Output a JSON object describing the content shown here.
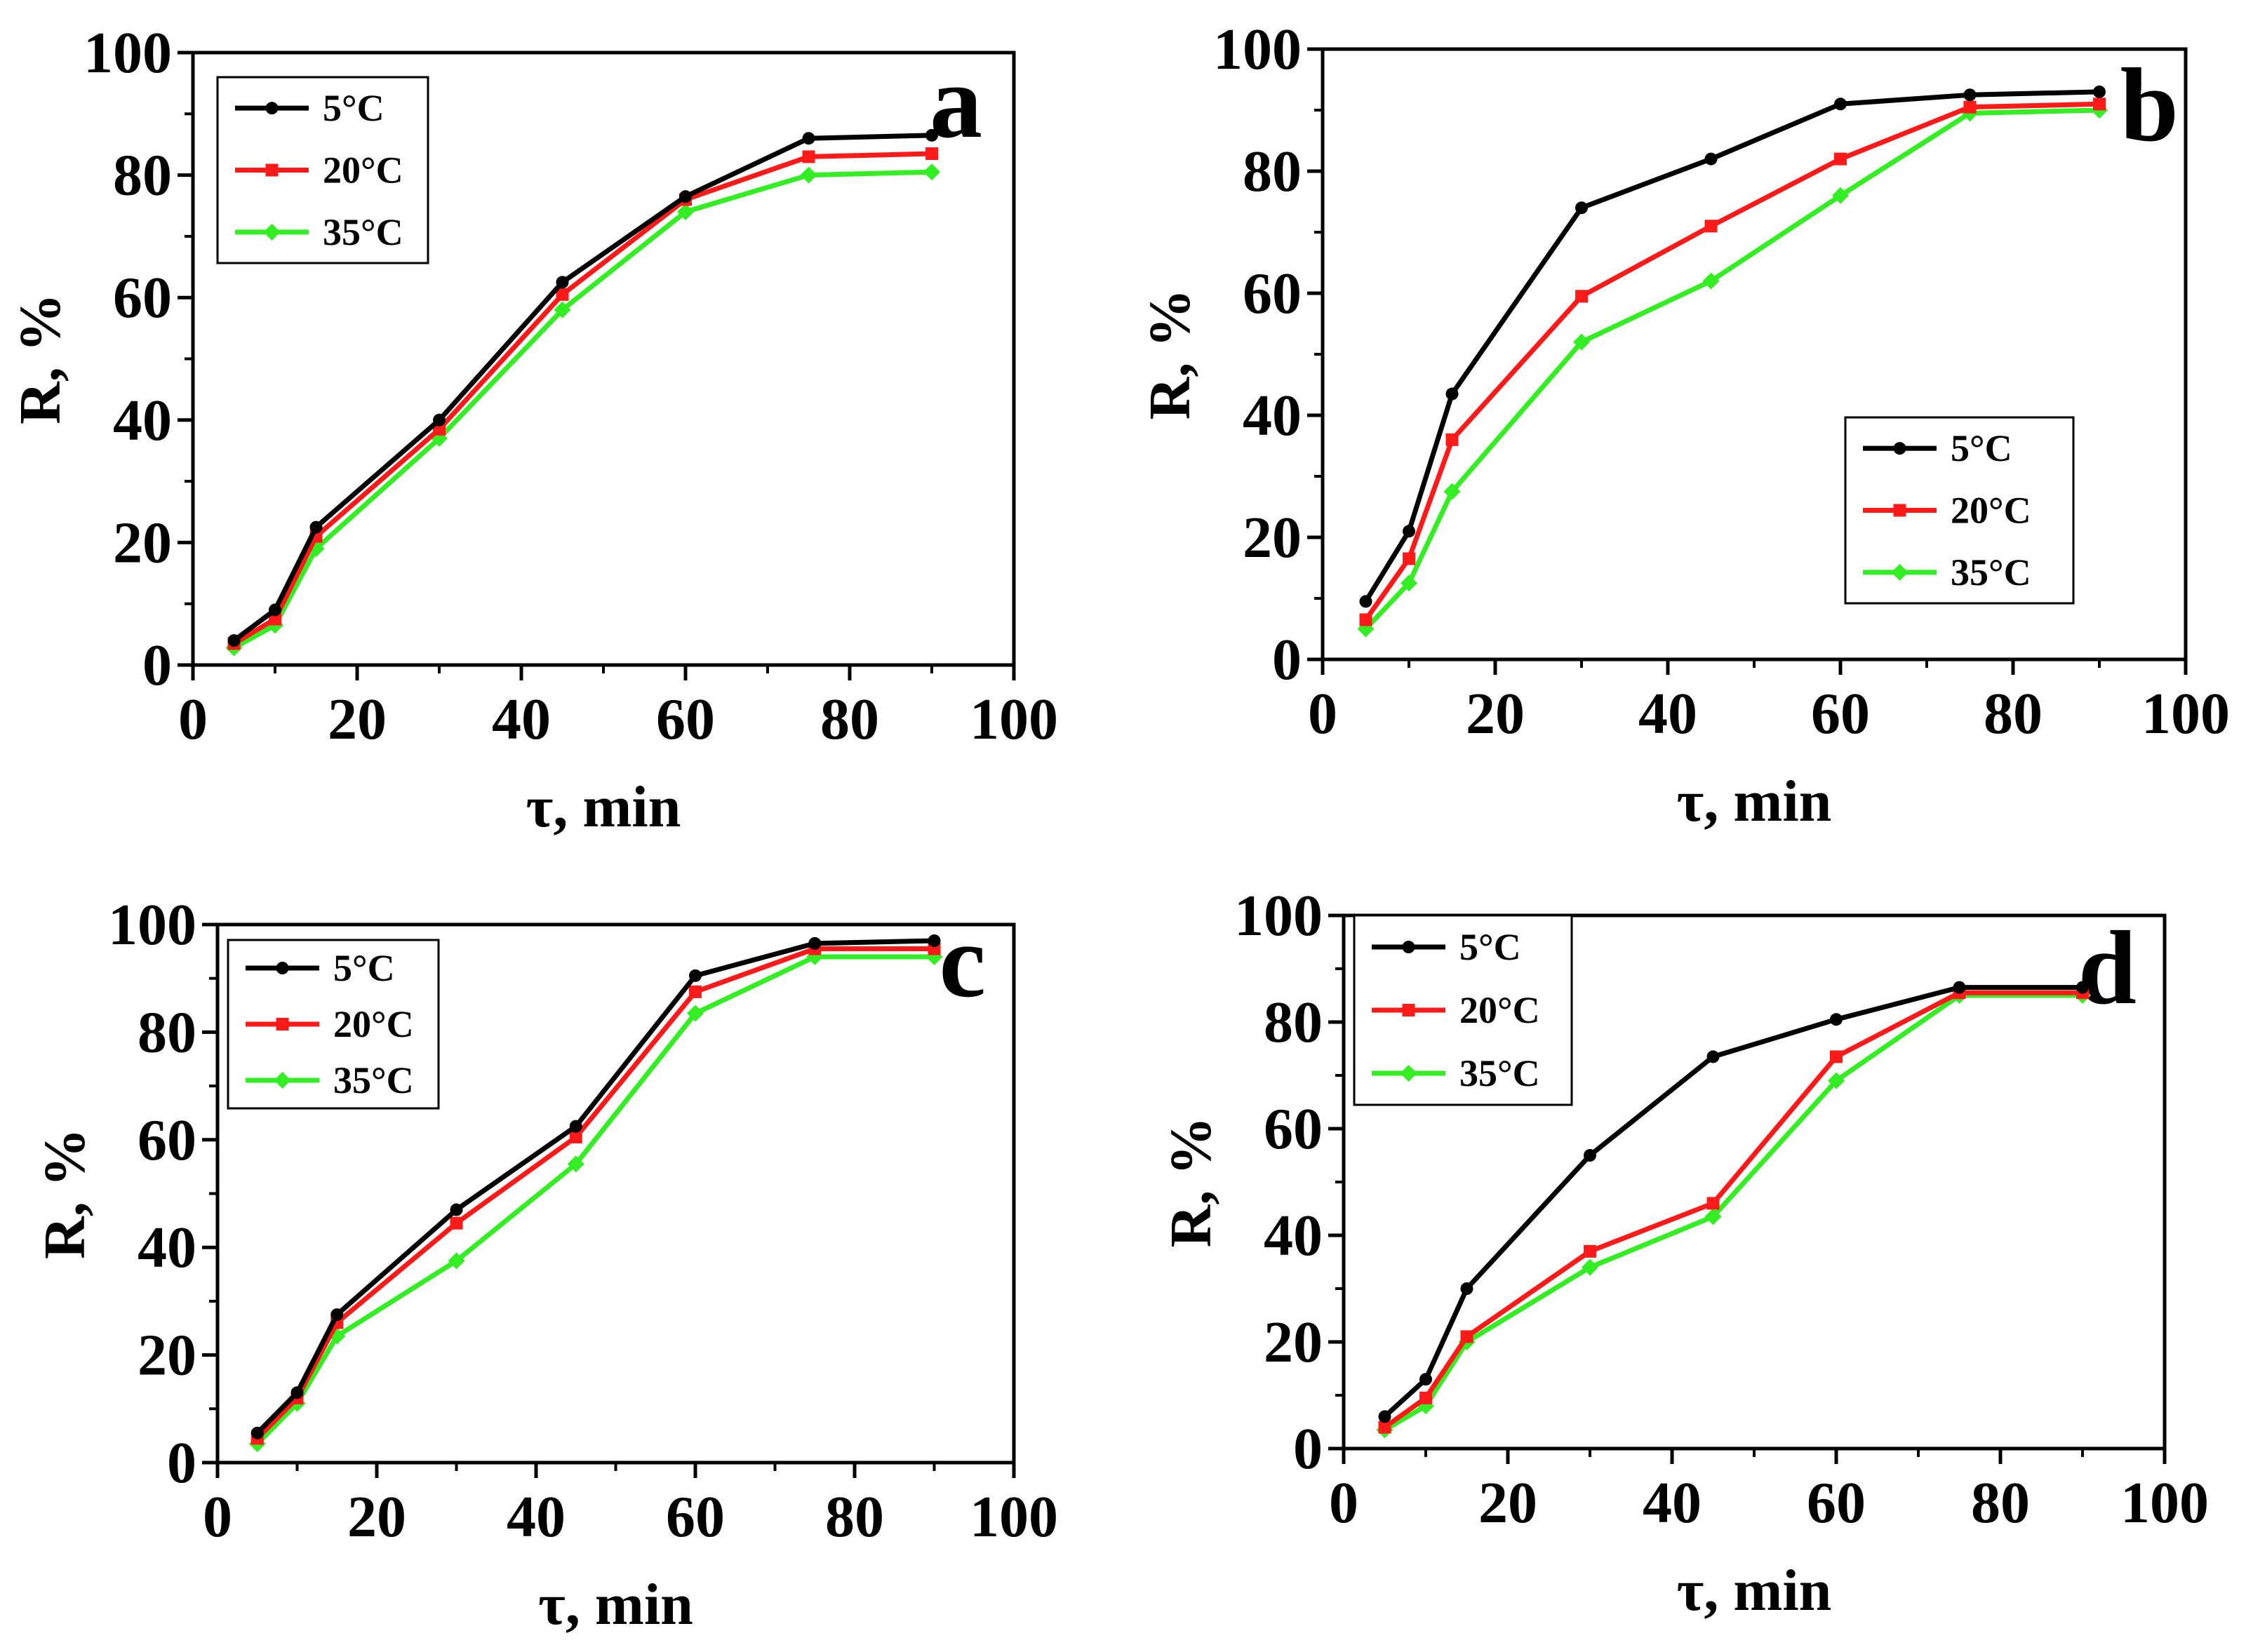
{
  "chart_data": [
    {
      "type": "line",
      "panel_label": "a",
      "xlabel": "τ, min",
      "ylabel": "R, %",
      "xlim": [
        0,
        100
      ],
      "ylim": [
        0,
        100
      ],
      "x_ticks": [
        "0",
        "20",
        "40",
        "60",
        "80",
        "100"
      ],
      "y_ticks": [
        "0",
        "20",
        "40",
        "60",
        "80",
        "100"
      ],
      "legend_position": "top-left",
      "x": [
        5,
        10,
        15,
        30,
        45,
        60,
        75,
        90
      ],
      "series": [
        {
          "name": "5°C",
          "color": "#000000",
          "values": [
            4,
            9,
            22.5,
            40,
            62.5,
            76.5,
            86,
            86.5
          ]
        },
        {
          "name": "20°C",
          "color": "#ff1a1a",
          "values": [
            3.5,
            7.5,
            21,
            38.5,
            60.5,
            76,
            83,
            83.5
          ]
        },
        {
          "name": "35°C",
          "color": "#33ee22",
          "values": [
            2.8,
            6.5,
            19,
            37,
            58,
            74,
            80,
            80.5
          ]
        }
      ]
    },
    {
      "type": "line",
      "panel_label": "b",
      "xlabel": "τ, min",
      "ylabel": "R, %",
      "xlim": [
        0,
        100
      ],
      "ylim": [
        0,
        100
      ],
      "x_ticks": [
        "0",
        "20",
        "40",
        "60",
        "80",
        "100"
      ],
      "y_ticks": [
        "0",
        "20",
        "40",
        "60",
        "80",
        "100"
      ],
      "legend_position": "center-right",
      "x": [
        5,
        10,
        15,
        30,
        45,
        60,
        75,
        90
      ],
      "series": [
        {
          "name": "5°C",
          "color": "#000000",
          "values": [
            9.5,
            21,
            43.5,
            74,
            82,
            91,
            92.5,
            93
          ]
        },
        {
          "name": "20°C",
          "color": "#ff1a1a",
          "values": [
            6.5,
            16.5,
            36,
            59.5,
            71,
            82,
            90.5,
            91
          ]
        },
        {
          "name": "35°C",
          "color": "#33ee22",
          "values": [
            5,
            12.5,
            27.5,
            52,
            62,
            76,
            89.5,
            90
          ]
        }
      ]
    },
    {
      "type": "line",
      "panel_label": "c",
      "xlabel": "τ, min",
      "ylabel": "R, %",
      "xlim": [
        0,
        100
      ],
      "ylim": [
        0,
        100
      ],
      "x_ticks": [
        "0",
        "20",
        "40",
        "60",
        "80",
        "100"
      ],
      "y_ticks": [
        "0",
        "20",
        "40",
        "60",
        "80",
        "100"
      ],
      "legend_position": "top-left",
      "x": [
        5,
        10,
        15,
        30,
        45,
        60,
        75,
        90
      ],
      "series": [
        {
          "name": "5°C",
          "color": "#000000",
          "values": [
            5.5,
            13,
            27.5,
            47,
            62.5,
            90.5,
            96.5,
            97
          ]
        },
        {
          "name": "20°C",
          "color": "#ff1a1a",
          "values": [
            4.5,
            12,
            26,
            44.5,
            60.5,
            87.5,
            95.5,
            95.5
          ]
        },
        {
          "name": "35°C",
          "color": "#33ee22",
          "values": [
            3.5,
            11,
            23.5,
            37.5,
            55.5,
            83.5,
            94,
            94
          ]
        }
      ]
    },
    {
      "type": "line",
      "panel_label": "d",
      "xlabel": "τ, min",
      "ylabel": "R, %",
      "xlim": [
        0,
        100
      ],
      "ylim": [
        0,
        100
      ],
      "x_ticks": [
        "0",
        "20",
        "40",
        "60",
        "80",
        "100"
      ],
      "y_ticks": [
        "0",
        "20",
        "40",
        "60",
        "80",
        "100"
      ],
      "legend_position": "top-left",
      "x": [
        5,
        10,
        15,
        30,
        45,
        60,
        75,
        90
      ],
      "series": [
        {
          "name": "5°C",
          "color": "#000000",
          "values": [
            6,
            13,
            30,
            55,
            73.5,
            80.5,
            86.5,
            86.5
          ]
        },
        {
          "name": "20°C",
          "color": "#ff1a1a",
          "values": [
            4,
            9.5,
            21,
            37,
            46,
            73.5,
            85.5,
            85.5
          ]
        },
        {
          "name": "35°C",
          "color": "#33ee22",
          "values": [
            3.5,
            8,
            20,
            34,
            43.5,
            69,
            85,
            85
          ]
        }
      ]
    }
  ]
}
